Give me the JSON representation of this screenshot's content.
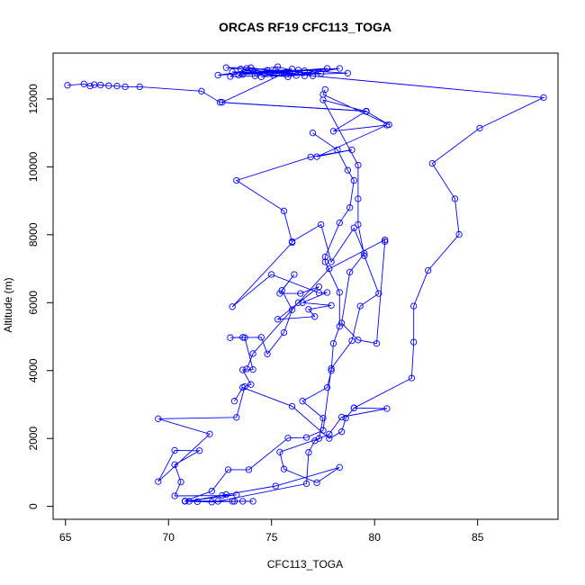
{
  "chart_data": {
    "type": "scatter",
    "title": "ORCAS RF19 CFC113_TOGA",
    "xlabel": "CFC113_TOGA",
    "ylabel": "Altitude (m)",
    "xlim": [
      64.4,
      88.9
    ],
    "ylim": [
      -380,
      13350
    ],
    "xticks": [
      65,
      70,
      75,
      80,
      85
    ],
    "yticks": [
      0,
      2000,
      4000,
      6000,
      8000,
      10000,
      12000
    ],
    "grid": false,
    "legend": "none",
    "colors": {
      "series": "#0000ff",
      "frame": "#000000"
    },
    "marker": "open-circle",
    "connected": true,
    "series": [
      {
        "points": [
          [
            73.2,
            150
          ],
          [
            72.1,
            130
          ],
          [
            71.4,
            140
          ],
          [
            70.8,
            150
          ],
          [
            73.3,
            340
          ],
          [
            72.6,
            320
          ],
          [
            70.3,
            310
          ],
          [
            70.6,
            720
          ],
          [
            70.3,
            1230
          ],
          [
            71.5,
            1640
          ],
          [
            70.3,
            1650
          ],
          [
            69.5,
            730
          ],
          [
            72.0,
            2130
          ],
          [
            69.5,
            2580
          ],
          [
            73.3,
            2620
          ],
          [
            73.7,
            3530
          ],
          [
            74.0,
            3590
          ],
          [
            73.6,
            4020
          ],
          [
            74.1,
            4030
          ],
          [
            73.7,
            4970
          ],
          [
            73.6,
            4980
          ],
          [
            73.0,
            4970
          ],
          [
            74.5,
            4980
          ],
          [
            74.8,
            4490
          ],
          [
            75.6,
            5120
          ],
          [
            76.0,
            5790
          ],
          [
            75.5,
            6360
          ],
          [
            76.1,
            6830
          ],
          [
            75.4,
            6270
          ],
          [
            76.4,
            6270
          ],
          [
            77.3,
            6470
          ],
          [
            75.3,
            5510
          ],
          [
            77.1,
            5590
          ],
          [
            76.8,
            5800
          ],
          [
            77.9,
            5920
          ],
          [
            76.5,
            6000
          ],
          [
            77.7,
            6300
          ],
          [
            77.3,
            6290
          ],
          [
            75.0,
            6830
          ],
          [
            73.1,
            5880
          ],
          [
            76.0,
            7770
          ],
          [
            75.6,
            8700
          ],
          [
            73.3,
            9600
          ],
          [
            76.9,
            10290
          ],
          [
            78.9,
            10500
          ],
          [
            77.2,
            10300
          ],
          [
            80.6,
            11230
          ],
          [
            78.0,
            11050
          ],
          [
            79.6,
            11640
          ],
          [
            72.6,
            11900
          ],
          [
            75.7,
            12780
          ],
          [
            76.6,
            12830
          ],
          [
            74.2,
            12680
          ],
          [
            73.0,
            12660
          ],
          [
            73.8,
            12900
          ],
          [
            77.4,
            12750
          ],
          [
            74.5,
            12650
          ],
          [
            76.0,
            12880
          ],
          [
            73.4,
            12700
          ],
          [
            75.2,
            12850
          ],
          [
            76.6,
            12680
          ],
          [
            74.0,
            12920
          ],
          [
            72.8,
            12920
          ],
          [
            75.5,
            12760
          ],
          [
            76.2,
            12690
          ],
          [
            78.3,
            12900
          ],
          [
            73.6,
            12720
          ],
          [
            74.8,
            12840
          ],
          [
            77.0,
            12680
          ],
          [
            75.3,
            12950
          ],
          [
            72.4,
            12700
          ],
          [
            76.3,
            12850
          ],
          [
            78.7,
            12760
          ],
          [
            75.1,
            12700
          ],
          [
            73.5,
            12880
          ],
          [
            74.3,
            12750
          ],
          [
            77.7,
            12900
          ],
          [
            75.8,
            12650
          ],
          [
            73.1,
            12800
          ],
          [
            75.9,
            12740
          ],
          [
            88.2,
            12040
          ],
          [
            85.1,
            11140
          ],
          [
            82.8,
            10100
          ],
          [
            83.9,
            9060
          ],
          [
            84.1,
            8010
          ],
          [
            82.6,
            6950
          ],
          [
            81.9,
            5900
          ],
          [
            81.9,
            4840
          ],
          [
            81.8,
            3780
          ],
          [
            79.0,
            2900
          ],
          [
            80.6,
            2880
          ],
          [
            78.4,
            2630
          ],
          [
            77.8,
            2130
          ],
          [
            77.1,
            1930
          ],
          [
            76.8,
            1590
          ],
          [
            76.7,
            670
          ],
          [
            72.4,
            150
          ],
          [
            74.1,
            150
          ],
          [
            73.6,
            150
          ],
          [
            73.1,
            150
          ],
          [
            70.8,
            160
          ],
          [
            72.1,
            450
          ],
          [
            72.9,
            1080
          ],
          [
            73.9,
            1080
          ],
          [
            75.8,
            2010
          ],
          [
            76.7,
            2030
          ],
          [
            77.5,
            2240
          ],
          [
            77.9,
            4060
          ],
          [
            78.9,
            4880
          ],
          [
            79.3,
            5900
          ],
          [
            80.2,
            6270
          ],
          [
            79.5,
            7380
          ],
          [
            79.2,
            8300
          ],
          [
            79.2,
            9060
          ],
          [
            79.2,
            10050
          ],
          [
            77.5,
            11970
          ],
          [
            79.6,
            11630
          ],
          [
            80.7,
            11240
          ],
          [
            77.5,
            12130
          ],
          [
            77.6,
            12280
          ]
        ]
      },
      {
        "points": [
          [
            65.1,
            12400
          ],
          [
            65.9,
            12440
          ],
          [
            66.2,
            12380
          ],
          [
            66.4,
            12420
          ],
          [
            66.7,
            12410
          ],
          [
            67.1,
            12390
          ],
          [
            67.5,
            12380
          ],
          [
            67.9,
            12360
          ],
          [
            68.6,
            12360
          ],
          [
            71.6,
            12230
          ],
          [
            72.5,
            11900
          ],
          [
            79.6,
            11640
          ]
        ]
      },
      {
        "points": [
          [
            77.0,
            11000
          ],
          [
            78.2,
            10500
          ],
          [
            78.7,
            9900
          ],
          [
            79.0,
            9600
          ],
          [
            78.8,
            8800
          ],
          [
            78.3,
            8350
          ],
          [
            77.6,
            7350
          ],
          [
            77.6,
            7200
          ],
          [
            78.3,
            6300
          ],
          [
            78.3,
            5300
          ],
          [
            78.0,
            4800
          ],
          [
            77.9,
            4000
          ],
          [
            77.7,
            3500
          ],
          [
            76.5,
            3100
          ],
          [
            77.5,
            2600
          ],
          [
            77.3,
            2000
          ],
          [
            75.4,
            1600
          ],
          [
            75.6,
            1100
          ],
          [
            77.2,
            700
          ],
          [
            78.3,
            1150
          ],
          [
            75.2,
            600
          ],
          [
            72.8,
            350
          ],
          [
            71.0,
            150
          ]
        ]
      },
      {
        "points": [
          [
            73.2,
            3100
          ],
          [
            73.6,
            3500
          ],
          [
            76.0,
            2950
          ],
          [
            77.8,
            2000
          ],
          [
            78.4,
            2200
          ],
          [
            78.6,
            2600
          ],
          [
            79.0,
            2900
          ]
        ]
      },
      {
        "points": [
          [
            76.0,
            7800
          ],
          [
            77.4,
            8300
          ],
          [
            77.9,
            7200
          ],
          [
            79.0,
            8200
          ],
          [
            79.5,
            7450
          ],
          [
            78.8,
            6900
          ],
          [
            78.4,
            5400
          ],
          [
            79.2,
            4900
          ],
          [
            80.1,
            4800
          ],
          [
            80.5,
            7800
          ],
          [
            80.5,
            7850
          ],
          [
            77.8,
            7000
          ],
          [
            76.3,
            6000
          ],
          [
            74.1,
            4500
          ],
          [
            73.8,
            4050
          ]
        ]
      }
    ]
  }
}
